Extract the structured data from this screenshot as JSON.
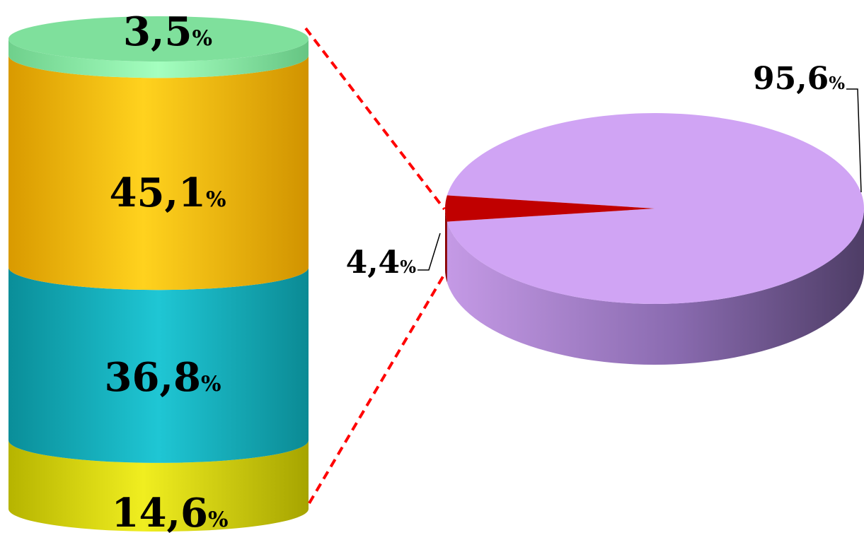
{
  "chart_data": [
    {
      "type": "bar",
      "categories": [
        "",
        "",
        "",
        ""
      ],
      "series": [
        {
          "values": [
            14.6,
            36.8,
            45.1,
            3.5
          ]
        }
      ],
      "data_labels": [
        {
          "value": "14,6",
          "unit": "%"
        },
        {
          "value": "36,8",
          "unit": "%"
        },
        {
          "value": "45,1",
          "unit": "%"
        },
        {
          "value": "3,5",
          "unit": "%"
        }
      ],
      "stacked": true,
      "ylim": [
        0,
        100
      ],
      "grid": false,
      "colors": [
        "#d6d400",
        "#14b8c4",
        "#f7c200",
        "#7fe09c"
      ]
    },
    {
      "type": "pie",
      "values": [
        95.6,
        4.4
      ],
      "data_labels": [
        {
          "value": "95,6",
          "unit": "%"
        },
        {
          "value": "4,4",
          "unit": "%"
        }
      ],
      "colors": [
        "#d0a4f4",
        "#c00000"
      ]
    }
  ],
  "connector_color": "#ff0000"
}
